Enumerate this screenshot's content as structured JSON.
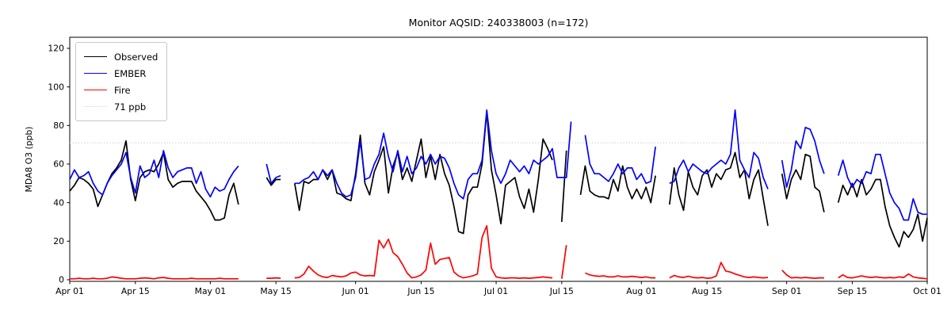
{
  "title": "Monitor AQSID: 240338003 (n=172)",
  "chart_data": {
    "type": "line",
    "title": "Monitor AQSID: 240338003 (n=172)",
    "xlabel": "",
    "ylabel": "MDA8 O3 (ppb)",
    "ylim": [
      0,
      125
    ],
    "grid": false,
    "y_ticks": [
      0,
      20,
      40,
      60,
      80,
      100,
      120
    ],
    "x_ticks": [
      {
        "day": 0,
        "label": "Apr 01"
      },
      {
        "day": 14,
        "label": "Apr 15"
      },
      {
        "day": 30,
        "label": "May 01"
      },
      {
        "day": 44,
        "label": "May 15"
      },
      {
        "day": 61,
        "label": "Jun 01"
      },
      {
        "day": 75,
        "label": "Jun 15"
      },
      {
        "day": 91,
        "label": "Jul 01"
      },
      {
        "day": 105,
        "label": "Jul 15"
      },
      {
        "day": 122,
        "label": "Aug 01"
      },
      {
        "day": 136,
        "label": "Aug 15"
      },
      {
        "day": 153,
        "label": "Sep 01"
      },
      {
        "day": 167,
        "label": "Sep 15"
      },
      {
        "day": 183,
        "label": "Oct 01"
      }
    ],
    "x_range_days": 183,
    "start_date": "Apr 01",
    "end_date": "Oct 01",
    "threshold": {
      "value": 71,
      "label": "71 ppb",
      "color": "#d3d3d3",
      "style": "dotted"
    },
    "legend": {
      "position": "upper left",
      "entries": [
        {
          "label": "Observed",
          "color": "#000000",
          "style": "solid"
        },
        {
          "label": "EMBER",
          "color": "#0000ff",
          "style": "solid"
        },
        {
          "label": "Fire",
          "color": "#ff0000",
          "style": "solid"
        },
        {
          "label": "71 ppb",
          "color": "#d3d3d3",
          "style": "dotted"
        }
      ]
    },
    "series": [
      {
        "name": "Observed",
        "color": "#000000",
        "values": [
          46,
          49,
          53,
          52,
          50,
          47,
          38,
          44,
          50,
          55,
          58,
          62,
          72,
          52,
          41,
          53,
          56,
          57,
          56,
          60,
          66,
          52,
          48,
          50,
          51,
          51,
          51,
          46,
          43,
          40,
          36,
          31,
          31,
          32,
          44,
          50,
          39,
          null,
          null,
          null,
          null,
          null,
          53,
          49,
          52,
          52,
          null,
          null,
          50,
          36,
          51,
          50,
          52,
          52,
          57,
          52,
          57,
          45,
          44,
          42,
          41,
          55,
          75,
          50,
          44,
          56,
          62,
          69,
          45,
          59,
          66,
          52,
          58,
          51,
          62,
          73,
          53,
          64,
          52,
          65,
          55,
          49,
          38,
          25,
          24,
          44,
          48,
          48,
          60,
          87,
          57,
          44,
          29,
          49,
          51,
          53,
          43,
          37,
          47,
          35,
          52,
          73,
          68,
          62,
          null,
          30,
          67,
          null,
          null,
          44,
          59,
          46,
          44,
          43,
          43,
          42,
          52,
          46,
          59,
          48,
          42,
          47,
          42,
          48,
          40,
          54,
          null,
          null,
          39,
          58,
          44,
          36,
          56,
          48,
          44,
          54,
          57,
          48,
          55,
          52,
          57,
          58,
          66,
          53,
          57,
          42,
          52,
          57,
          42,
          28,
          null,
          null,
          55,
          42,
          52,
          57,
          52,
          65,
          64,
          48,
          46,
          35,
          null,
          null,
          40,
          49,
          44,
          50,
          43,
          52,
          44,
          47,
          52,
          52,
          38,
          28,
          22,
          17,
          25,
          22,
          26,
          34,
          20,
          32
        ]
      },
      {
        "name": "EMBER",
        "color": "#0000ff",
        "values": [
          52,
          57,
          53,
          54,
          56,
          50,
          46,
          44,
          50,
          54,
          57,
          60,
          66,
          53,
          45,
          59,
          53,
          55,
          62,
          53,
          67,
          58,
          53,
          56,
          57,
          58,
          58,
          50,
          56,
          47,
          43,
          48,
          46,
          47,
          52,
          56,
          59,
          null,
          null,
          null,
          null,
          null,
          60,
          50,
          53,
          54,
          null,
          null,
          50,
          50,
          52,
          53,
          56,
          52,
          57,
          54,
          57,
          50,
          45,
          43,
          44,
          53,
          72,
          52,
          53,
          60,
          65,
          76,
          64,
          56,
          67,
          56,
          64,
          55,
          58,
          64,
          60,
          65,
          60,
          64,
          63,
          58,
          50,
          44,
          42,
          52,
          55,
          55,
          62,
          88,
          67,
          55,
          50,
          55,
          62,
          59,
          56,
          59,
          55,
          62,
          60,
          62,
          64,
          68,
          53,
          53,
          53,
          82,
          null,
          null,
          75,
          60,
          55,
          55,
          53,
          51,
          55,
          60,
          55,
          58,
          58,
          52,
          55,
          50,
          51,
          69,
          null,
          null,
          50,
          51,
          58,
          62,
          56,
          60,
          58,
          56,
          55,
          58,
          60,
          62,
          60,
          65,
          88,
          62,
          57,
          53,
          66,
          63,
          53,
          47,
          null,
          null,
          62,
          48,
          57,
          72,
          68,
          79,
          78,
          72,
          62,
          55,
          null,
          null,
          54,
          62,
          53,
          48,
          52,
          50,
          56,
          55,
          65,
          65,
          55,
          45,
          40,
          37,
          31,
          31,
          42,
          35,
          34,
          34
        ]
      },
      {
        "name": "Fire",
        "color": "#ff0000",
        "values": [
          0.5,
          0.5,
          0.8,
          0.5,
          0.5,
          0.8,
          0.5,
          0.5,
          0.8,
          1.5,
          1.2,
          0.8,
          0.5,
          0.5,
          0.5,
          0.8,
          1.0,
          0.8,
          0.5,
          1.0,
          1.2,
          0.8,
          0.5,
          0.5,
          0.5,
          0.5,
          0.8,
          0.5,
          0.5,
          0.5,
          0.5,
          0.5,
          0.8,
          0.5,
          0.5,
          0.5,
          0.5,
          null,
          null,
          null,
          null,
          null,
          0.8,
          0.8,
          1.0,
          0.8,
          null,
          null,
          1.0,
          1.2,
          3.0,
          7.0,
          4.5,
          2.5,
          1.5,
          1.2,
          2.2,
          1.8,
          1.5,
          2.0,
          3.5,
          4.0,
          2.5,
          2.0,
          2.2,
          2.0,
          20.5,
          16.5,
          21.0,
          14.0,
          12.0,
          8.0,
          3.5,
          1.0,
          1.5,
          2.5,
          5.0,
          19.0,
          8.0,
          10.5,
          11.0,
          11.5,
          4.0,
          2.0,
          1.0,
          1.5,
          2.0,
          3.0,
          22.0,
          28.0,
          6.0,
          1.5,
          1.0,
          0.8,
          1.0,
          1.0,
          0.8,
          1.0,
          0.8,
          1.0,
          1.2,
          1.5,
          1.2,
          1.0,
          null,
          0.5,
          18.0,
          null,
          null,
          null,
          3.5,
          2.5,
          2.0,
          1.8,
          2.0,
          1.5,
          1.5,
          2.0,
          1.5,
          1.5,
          1.8,
          1.5,
          1.2,
          1.5,
          1.0,
          1.0,
          null,
          null,
          1.0,
          2.2,
          1.5,
          1.2,
          1.8,
          1.2,
          1.0,
          1.2,
          0.8,
          1.0,
          2.0,
          9.0,
          4.5,
          4.0,
          3.0,
          2.2,
          1.5,
          1.2,
          1.5,
          1.2,
          1.0,
          1.2,
          null,
          null,
          5.0,
          2.5,
          1.0,
          1.2,
          1.0,
          1.2,
          1.0,
          0.8,
          1.0,
          1.0,
          null,
          null,
          1.0,
          2.5,
          1.2,
          1.0,
          1.5,
          2.0,
          1.5,
          1.2,
          1.5,
          1.2,
          1.0,
          1.2,
          1.0,
          1.5,
          1.2,
          3.0,
          1.5,
          1.0,
          0.8,
          0.5
        ]
      }
    ]
  }
}
